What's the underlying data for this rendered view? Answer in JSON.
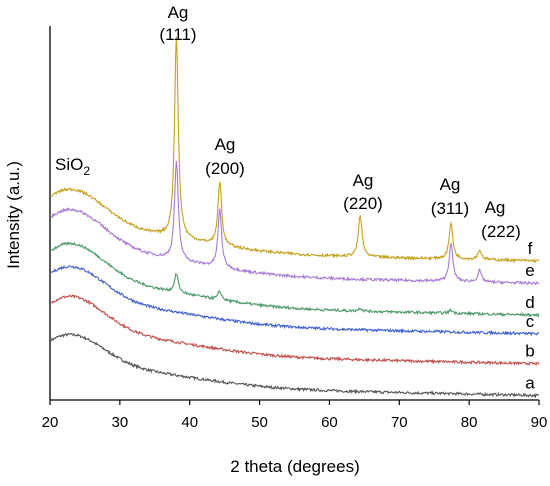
{
  "chart_data": {
    "type": "line",
    "xlabel": "2 theta (degrees)",
    "ylabel": "Intensity (a.u.)",
    "xlim": [
      20,
      90
    ],
    "xticks": [
      20,
      30,
      40,
      50,
      60,
      70,
      80,
      90
    ],
    "ylim": [
      0,
      10
    ],
    "grid": false,
    "legend": "none",
    "series": [
      {
        "name": "a",
        "color": "#555555",
        "baseline": 0.4,
        "hump": 1.2,
        "peaks": []
      },
      {
        "name": "b",
        "color": "#c0504d",
        "baseline": 1.25,
        "hump": 1.35,
        "peaks": []
      },
      {
        "name": "c",
        "color": "#3f5fd0",
        "baseline": 2.05,
        "hump": 1.35,
        "peaks": []
      },
      {
        "name": "d",
        "color": "#4e9a6a",
        "baseline": 2.55,
        "hump": 1.45,
        "peaks": [
          {
            "x": 38.1,
            "h": 0.5
          },
          {
            "x": 44.3,
            "h": 0.22
          },
          {
            "x": 64.4,
            "h": 0.08
          },
          {
            "x": 77.4,
            "h": 0.08
          }
        ]
      },
      {
        "name": "e",
        "color": "#a87ad3",
        "baseline": 3.4,
        "hump": 1.5,
        "peaks": [
          {
            "x": 38.1,
            "h": 2.65
          },
          {
            "x": 44.3,
            "h": 1.55
          },
          {
            "x": 64.4,
            "h": 0.0
          },
          {
            "x": 77.4,
            "h": 1.0
          },
          {
            "x": 81.5,
            "h": 0.3
          }
        ]
      },
      {
        "name": "f",
        "color": "#c4a11e",
        "baseline": 4.0,
        "hump": 1.45,
        "peaks": [
          {
            "x": 38.1,
            "h": 5.4
          },
          {
            "x": 44.3,
            "h": 1.7
          },
          {
            "x": 64.4,
            "h": 1.1
          },
          {
            "x": 77.4,
            "h": 0.95
          },
          {
            "x": 81.5,
            "h": 0.25
          }
        ]
      }
    ],
    "annotations": [
      {
        "name": "sio2",
        "text": "SiO",
        "sub": "2"
      },
      {
        "name": "ag111",
        "line1": "Ag",
        "line2": "(111)"
      },
      {
        "name": "ag200",
        "line1": "Ag",
        "line2": "(200)"
      },
      {
        "name": "ag220",
        "line1": "Ag",
        "line2": "(220)"
      },
      {
        "name": "ag311",
        "line1": "Ag",
        "line2": "(311)"
      },
      {
        "name": "ag222",
        "line1": "Ag",
        "line2": "(222)"
      }
    ]
  }
}
